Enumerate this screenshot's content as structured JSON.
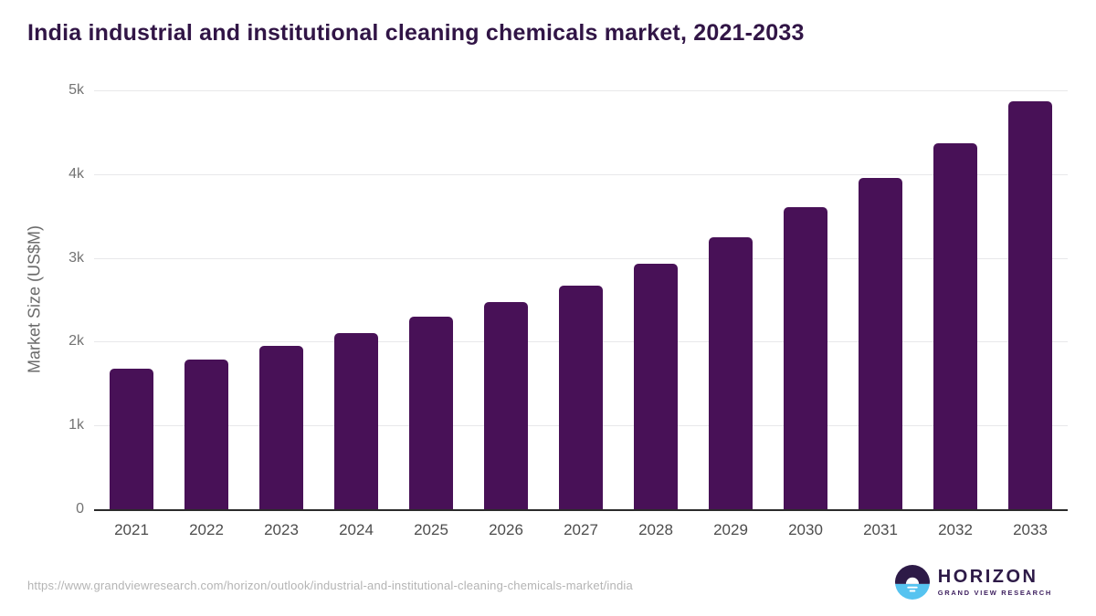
{
  "page_title": "India industrial and institutional cleaning chemicals market, 2021-2033",
  "chart_data": {
    "type": "bar",
    "title": "India industrial and institutional cleaning chemicals market, 2021-2033",
    "categories": [
      "2021",
      "2022",
      "2023",
      "2024",
      "2025",
      "2026",
      "2027",
      "2028",
      "2029",
      "2030",
      "2031",
      "2032",
      "2033"
    ],
    "values": [
      1680,
      1785,
      1950,
      2100,
      2300,
      2470,
      2670,
      2930,
      3245,
      3605,
      3955,
      4370,
      4870
    ],
    "xlabel": "",
    "ylabel": "Market Size (US$M)",
    "ylim": [
      0,
      5000
    ],
    "yticks": [
      {
        "value": 5000,
        "label": "5k"
      },
      {
        "value": 4000,
        "label": "4k"
      },
      {
        "value": 3000,
        "label": "3k"
      },
      {
        "value": 2000,
        "label": "2k"
      },
      {
        "value": 1000,
        "label": "1k"
      },
      {
        "value": 0,
        "label": "0"
      }
    ],
    "grid": true,
    "legend": false,
    "bar_color": "#481157"
  },
  "colors": {
    "title_text": "#311546",
    "bar_fill": "#481157",
    "gridline": "#e8e8ea",
    "axis_line": "#2b2b2b",
    "tick_text": "#737373",
    "logo_purple": "#2d1a47",
    "logo_blue": "#56c3f0"
  },
  "footer": {
    "source_url": "https://www.grandviewresearch.com/horizon/outlook/industrial-and-institutional-cleaning-chemicals-market/india",
    "logo": {
      "name": "HORIZON",
      "subtitle": "GRAND VIEW RESEARCH"
    }
  }
}
